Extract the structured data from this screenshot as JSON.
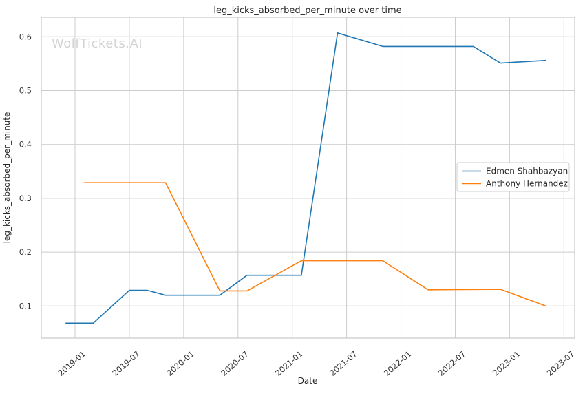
{
  "watermark": "WolfTickets.AI",
  "chart_data": {
    "type": "line",
    "title": "leg_kicks_absorbed_per_minute over time",
    "xlabel": "Date",
    "ylabel": "leg_kicks_absorbed_per_minute",
    "grid": true,
    "background_color": "#ffffff",
    "grid_color": "#cccccc",
    "xticks": [
      "2019-01",
      "2019-07",
      "2020-01",
      "2020-07",
      "2021-01",
      "2021-07",
      "2022-01",
      "2022-07",
      "2023-01",
      "2023-07"
    ],
    "yticks": [
      "0.1",
      "0.2",
      "0.3",
      "0.4",
      "0.5",
      "0.6"
    ],
    "ylim": [
      0.04,
      0.636
    ],
    "xlim": [
      "2018-09",
      "2023-08"
    ],
    "legend": {
      "position": "middle-right",
      "entries": [
        "Edmen Shahbazyan",
        "Anthony Hernandez"
      ]
    },
    "series": [
      {
        "name": "Edmen Shahbazyan",
        "color": "#1f77b4",
        "x": [
          "2018-12",
          "2019-03",
          "2019-07",
          "2019-09",
          "2019-11",
          "2020-05",
          "2020-08",
          "2021-02",
          "2021-06",
          "2021-11",
          "2022-09",
          "2022-12",
          "2023-05"
        ],
        "y": [
          0.068,
          0.068,
          0.129,
          0.129,
          0.12,
          0.12,
          0.157,
          0.157,
          0.607,
          0.582,
          0.582,
          0.551,
          0.556
        ]
      },
      {
        "name": "Anthony Hernandez",
        "color": "#ff7f0e",
        "x": [
          "2019-02",
          "2019-11",
          "2020-05",
          "2020-08",
          "2021-02",
          "2021-11",
          "2022-04",
          "2022-12",
          "2023-05"
        ],
        "y": [
          0.329,
          0.329,
          0.128,
          0.128,
          0.184,
          0.184,
          0.13,
          0.131,
          0.1
        ]
      }
    ]
  }
}
